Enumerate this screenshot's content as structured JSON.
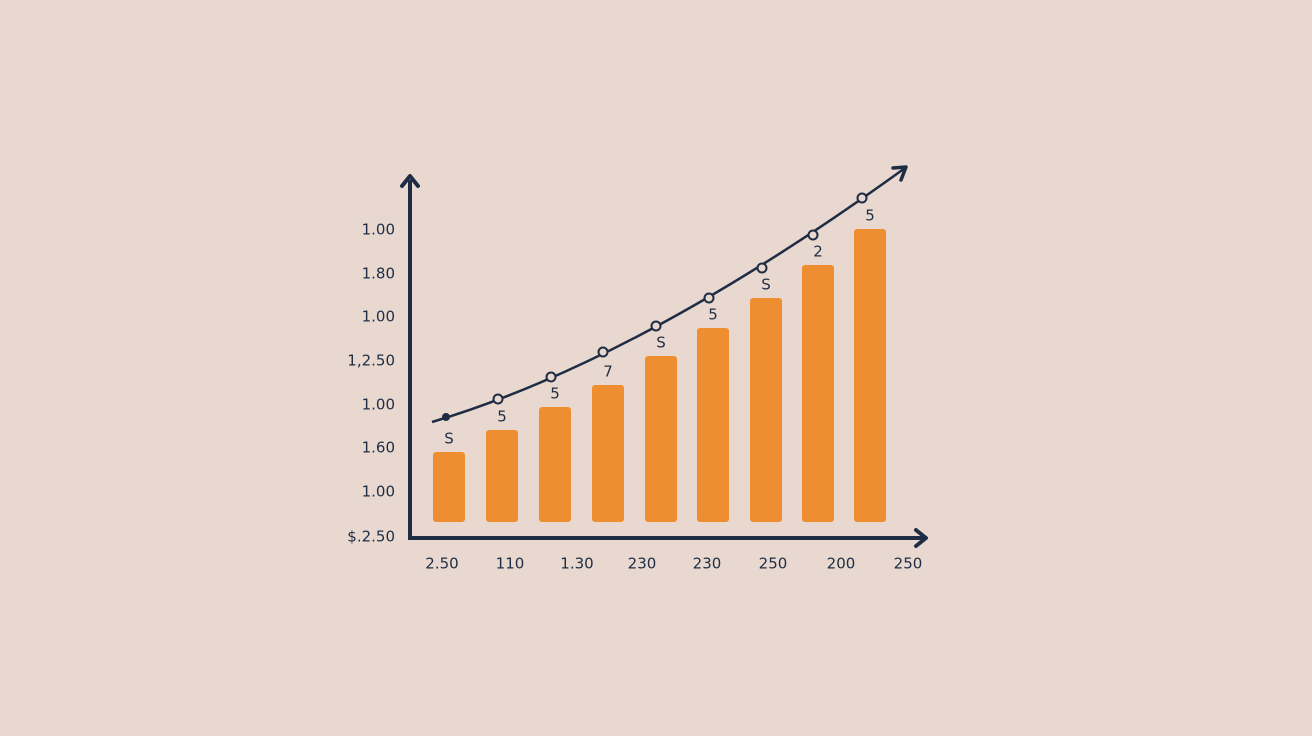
{
  "y_axis_labels": [
    "1.00",
    "1.80",
    "1.00",
    "1,2.50",
    "1.00",
    "1.60",
    "1.00",
    "$.2.50"
  ],
  "x_axis_labels": [
    "2.50",
    "110",
    "1.30",
    "230",
    "230",
    "250",
    "200",
    "250"
  ],
  "bar_labels": [
    "S",
    "5",
    "5",
    "7",
    "S",
    "5",
    "S",
    "2",
    "5"
  ]
}
